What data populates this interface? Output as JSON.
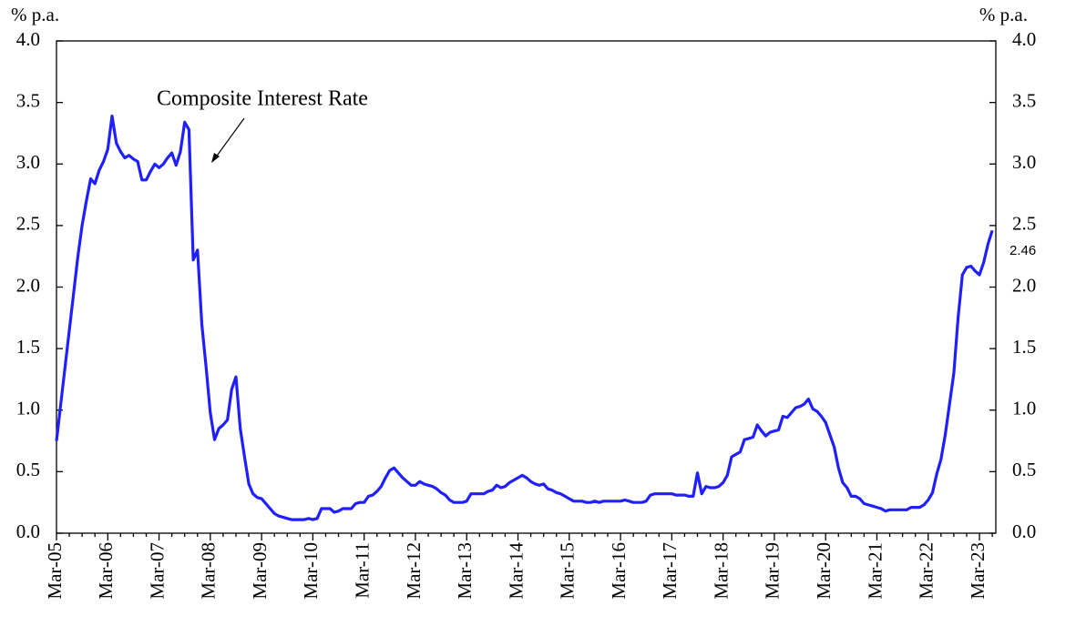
{
  "chart_data": {
    "type": "line",
    "y_label": "% p.a.",
    "y2_label": "% p.a.",
    "categories": [
      "Mar-05",
      null,
      null,
      null,
      null,
      null,
      null,
      null,
      null,
      null,
      null,
      null,
      "Mar-06",
      null,
      null,
      null,
      null,
      null,
      null,
      null,
      null,
      null,
      null,
      null,
      "Mar-07",
      null,
      null,
      null,
      null,
      null,
      null,
      null,
      null,
      null,
      null,
      null,
      "Mar-08",
      null,
      null,
      null,
      null,
      null,
      null,
      null,
      null,
      null,
      null,
      null,
      "Mar-09",
      null,
      null,
      null,
      null,
      null,
      null,
      null,
      null,
      null,
      null,
      null,
      "Mar-10",
      null,
      null,
      null,
      null,
      null,
      null,
      null,
      null,
      null,
      null,
      null,
      "Mar-11",
      null,
      null,
      null,
      null,
      null,
      null,
      null,
      null,
      null,
      null,
      null,
      "Mar-12",
      null,
      null,
      null,
      null,
      null,
      null,
      null,
      null,
      null,
      null,
      null,
      "Mar-13",
      null,
      null,
      null,
      null,
      null,
      null,
      null,
      null,
      null,
      null,
      null,
      "Mar-14",
      null,
      null,
      null,
      null,
      null,
      null,
      null,
      null,
      null,
      null,
      null,
      "Mar-15",
      null,
      null,
      null,
      null,
      null,
      null,
      null,
      null,
      null,
      null,
      null,
      "Mar-16",
      null,
      null,
      null,
      null,
      null,
      null,
      null,
      null,
      null,
      null,
      null,
      "Mar-17",
      null,
      null,
      null,
      null,
      null,
      null,
      null,
      null,
      null,
      null,
      null,
      "Mar-18",
      null,
      null,
      null,
      null,
      null,
      null,
      null,
      null,
      null,
      null,
      null,
      "Mar-19",
      null,
      null,
      null,
      null,
      null,
      null,
      null,
      null,
      null,
      null,
      null,
      "Mar-20",
      null,
      null,
      null,
      null,
      null,
      null,
      null,
      null,
      null,
      null,
      null,
      "Mar-21",
      null,
      null,
      null,
      null,
      null,
      null,
      null,
      null,
      null,
      null,
      null,
      "Mar-22",
      null,
      null,
      null,
      null,
      null,
      null,
      null,
      null,
      null,
      null,
      null,
      "Mar-23",
      null,
      null,
      null
    ],
    "series": [
      {
        "name": "Composite Interest Rate",
        "color": "#1f1fff",
        "values": [
          0.75,
          1.05,
          1.35,
          1.65,
          1.95,
          2.25,
          2.5,
          2.7,
          2.88,
          2.84,
          2.95,
          3.02,
          3.12,
          3.39,
          3.17,
          3.1,
          3.05,
          3.07,
          3.04,
          3.02,
          2.87,
          2.87,
          2.94,
          3.0,
          2.97,
          3.0,
          3.05,
          3.09,
          2.99,
          3.1,
          3.34,
          3.28,
          2.22,
          2.3,
          1.7,
          1.35,
          0.98,
          0.76,
          0.85,
          0.88,
          0.92,
          1.17,
          1.27,
          0.85,
          0.62,
          0.4,
          0.32,
          0.29,
          0.28,
          0.24,
          0.2,
          0.16,
          0.14,
          0.13,
          0.12,
          0.11,
          0.11,
          0.11,
          0.11,
          0.12,
          0.11,
          0.12,
          0.2,
          0.2,
          0.2,
          0.17,
          0.18,
          0.2,
          0.2,
          0.2,
          0.24,
          0.25,
          0.25,
          0.3,
          0.31,
          0.34,
          0.38,
          0.45,
          0.51,
          0.53,
          0.49,
          0.45,
          0.42,
          0.39,
          0.39,
          0.42,
          0.4,
          0.39,
          0.38,
          0.36,
          0.33,
          0.31,
          0.27,
          0.25,
          0.25,
          0.25,
          0.26,
          0.32,
          0.32,
          0.32,
          0.32,
          0.34,
          0.35,
          0.39,
          0.37,
          0.38,
          0.41,
          0.43,
          0.45,
          0.47,
          0.45,
          0.42,
          0.4,
          0.39,
          0.4,
          0.36,
          0.35,
          0.33,
          0.32,
          0.3,
          0.28,
          0.26,
          0.26,
          0.26,
          0.25,
          0.25,
          0.26,
          0.25,
          0.26,
          0.26,
          0.26,
          0.26,
          0.26,
          0.27,
          0.26,
          0.25,
          0.25,
          0.25,
          0.26,
          0.31,
          0.32,
          0.32,
          0.32,
          0.32,
          0.32,
          0.31,
          0.31,
          0.31,
          0.3,
          0.3,
          0.49,
          0.32,
          0.38,
          0.37,
          0.37,
          0.38,
          0.41,
          0.47,
          0.62,
          0.64,
          0.66,
          0.76,
          0.77,
          0.78,
          0.88,
          0.83,
          0.79,
          0.82,
          0.83,
          0.84,
          0.95,
          0.94,
          0.98,
          1.02,
          1.03,
          1.05,
          1.09,
          1.01,
          0.99,
          0.95,
          0.9,
          0.8,
          0.7,
          0.53,
          0.41,
          0.37,
          0.3,
          0.3,
          0.28,
          0.24,
          0.23,
          0.22,
          0.21,
          0.2,
          0.18,
          0.19,
          0.19,
          0.19,
          0.19,
          0.19,
          0.21,
          0.21,
          0.21,
          0.23,
          0.27,
          0.33,
          0.48,
          0.6,
          0.8,
          1.05,
          1.3,
          1.75,
          2.1,
          2.16,
          2.17,
          2.13,
          2.1,
          2.2,
          2.35,
          2.46
        ]
      }
    ],
    "annotations": [
      {
        "text": "Composite Interest Rate"
      },
      {
        "text": "2.46"
      }
    ],
    "ylim": [
      0,
      4
    ],
    "yticks": [
      {
        "value": 0,
        "label": "0.0"
      },
      {
        "value": 0.5,
        "label": "0.5"
      },
      {
        "value": 1,
        "label": "1.0"
      },
      {
        "value": 1.5,
        "label": "1.5"
      },
      {
        "value": 2,
        "label": "2.0"
      },
      {
        "value": 2.5,
        "label": "2.5"
      },
      {
        "value": 3,
        "label": "3.0"
      },
      {
        "value": 3.5,
        "label": "3.5"
      },
      {
        "value": 4,
        "label": "4.0"
      }
    ],
    "y2lim": [
      0,
      4
    ],
    "y2ticks": [
      {
        "value": 0,
        "label": "0.0"
      },
      {
        "value": 0.5,
        "label": "0.5"
      },
      {
        "value": 1,
        "label": "1.0"
      },
      {
        "value": 1.5,
        "label": "1.5"
      },
      {
        "value": 2,
        "label": "2.0"
      },
      {
        "value": 2.5,
        "label": "2.5"
      },
      {
        "value": 3,
        "label": "3.0"
      },
      {
        "value": 3.5,
        "label": "3.5"
      },
      {
        "value": 4,
        "label": "4.0"
      }
    ],
    "grid": false
  }
}
